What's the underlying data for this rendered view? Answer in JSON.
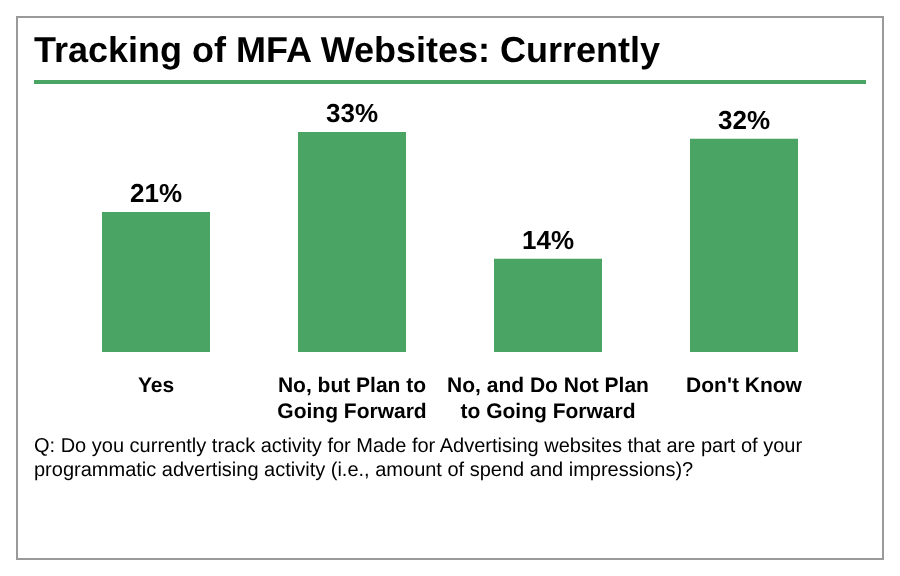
{
  "chart_data": {
    "type": "bar",
    "title": "Tracking of MFA Websites: Currently",
    "categories": [
      "Yes",
      "No, but Plan to Going Forward",
      "No, and Do Not Plan to Going Forward",
      "Don't Know"
    ],
    "values": [
      21,
      33,
      14,
      32
    ],
    "value_labels": [
      "21%",
      "33%",
      "14%",
      "32%"
    ],
    "color": "#4aa564",
    "annotations": [
      "Q: Do you currently track activity for Made for Advertising websites that are part of your programmatic advertising activity (i.e., amount of spend and impressions)?"
    ]
  }
}
